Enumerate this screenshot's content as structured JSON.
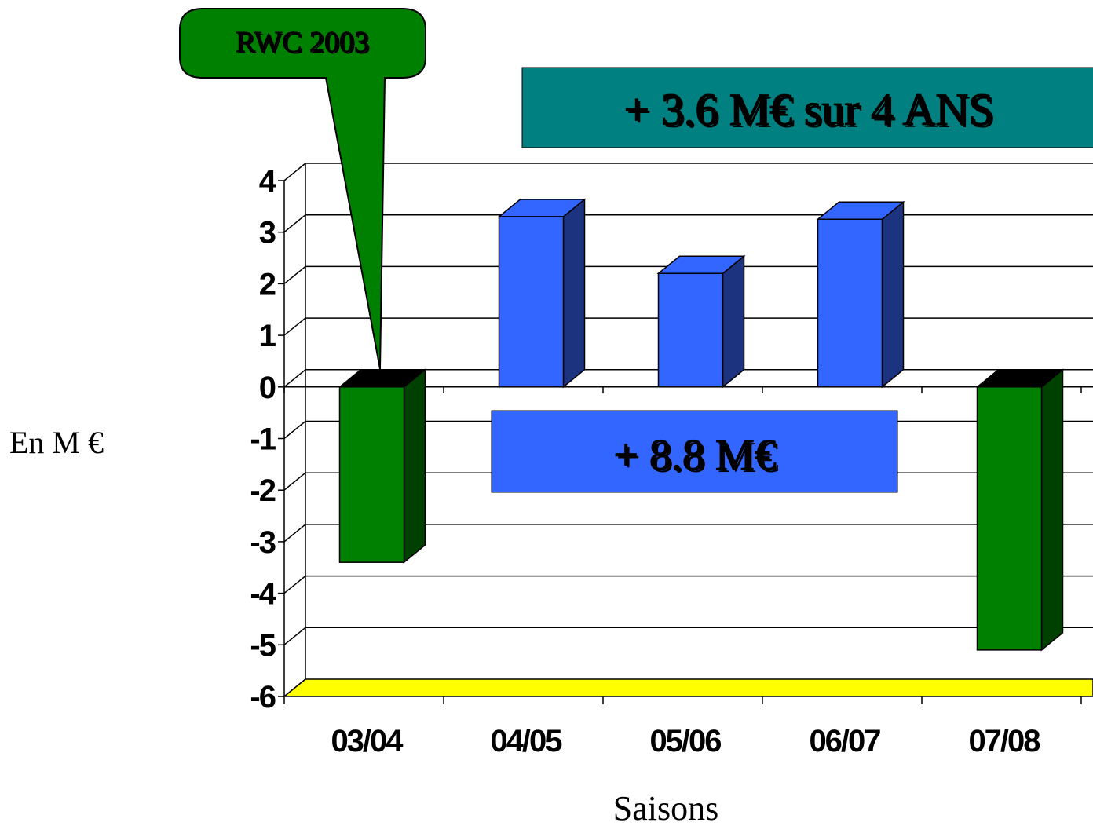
{
  "chart_data": {
    "type": "bar",
    "title": "",
    "xlabel": "Saisons",
    "ylabel": "En M €",
    "categories": [
      "03/04",
      "04/05",
      "05/06",
      "06/07",
      "07/08"
    ],
    "values": [
      -3.4,
      3.3,
      2.2,
      3.25,
      -5.1
    ],
    "ylim": [
      -6,
      4
    ],
    "yticks": [
      4,
      3,
      2,
      1,
      0,
      -1,
      -2,
      -3,
      -4,
      -5,
      -6
    ],
    "grid": true,
    "annotations": {
      "callout": "RWC 2003",
      "total_box": "+ 3.6 M€ sur 4 ANS",
      "positive_box": "+ 8.8 M€"
    }
  },
  "colors": {
    "positive_front": "#3366ff",
    "positive_side": "#1c3380",
    "negative_front": "#008000",
    "negative_side": "#004000",
    "negative_top": "#000000",
    "floor": "#ffff00",
    "callout": "#008000",
    "total_box": "#008080"
  }
}
